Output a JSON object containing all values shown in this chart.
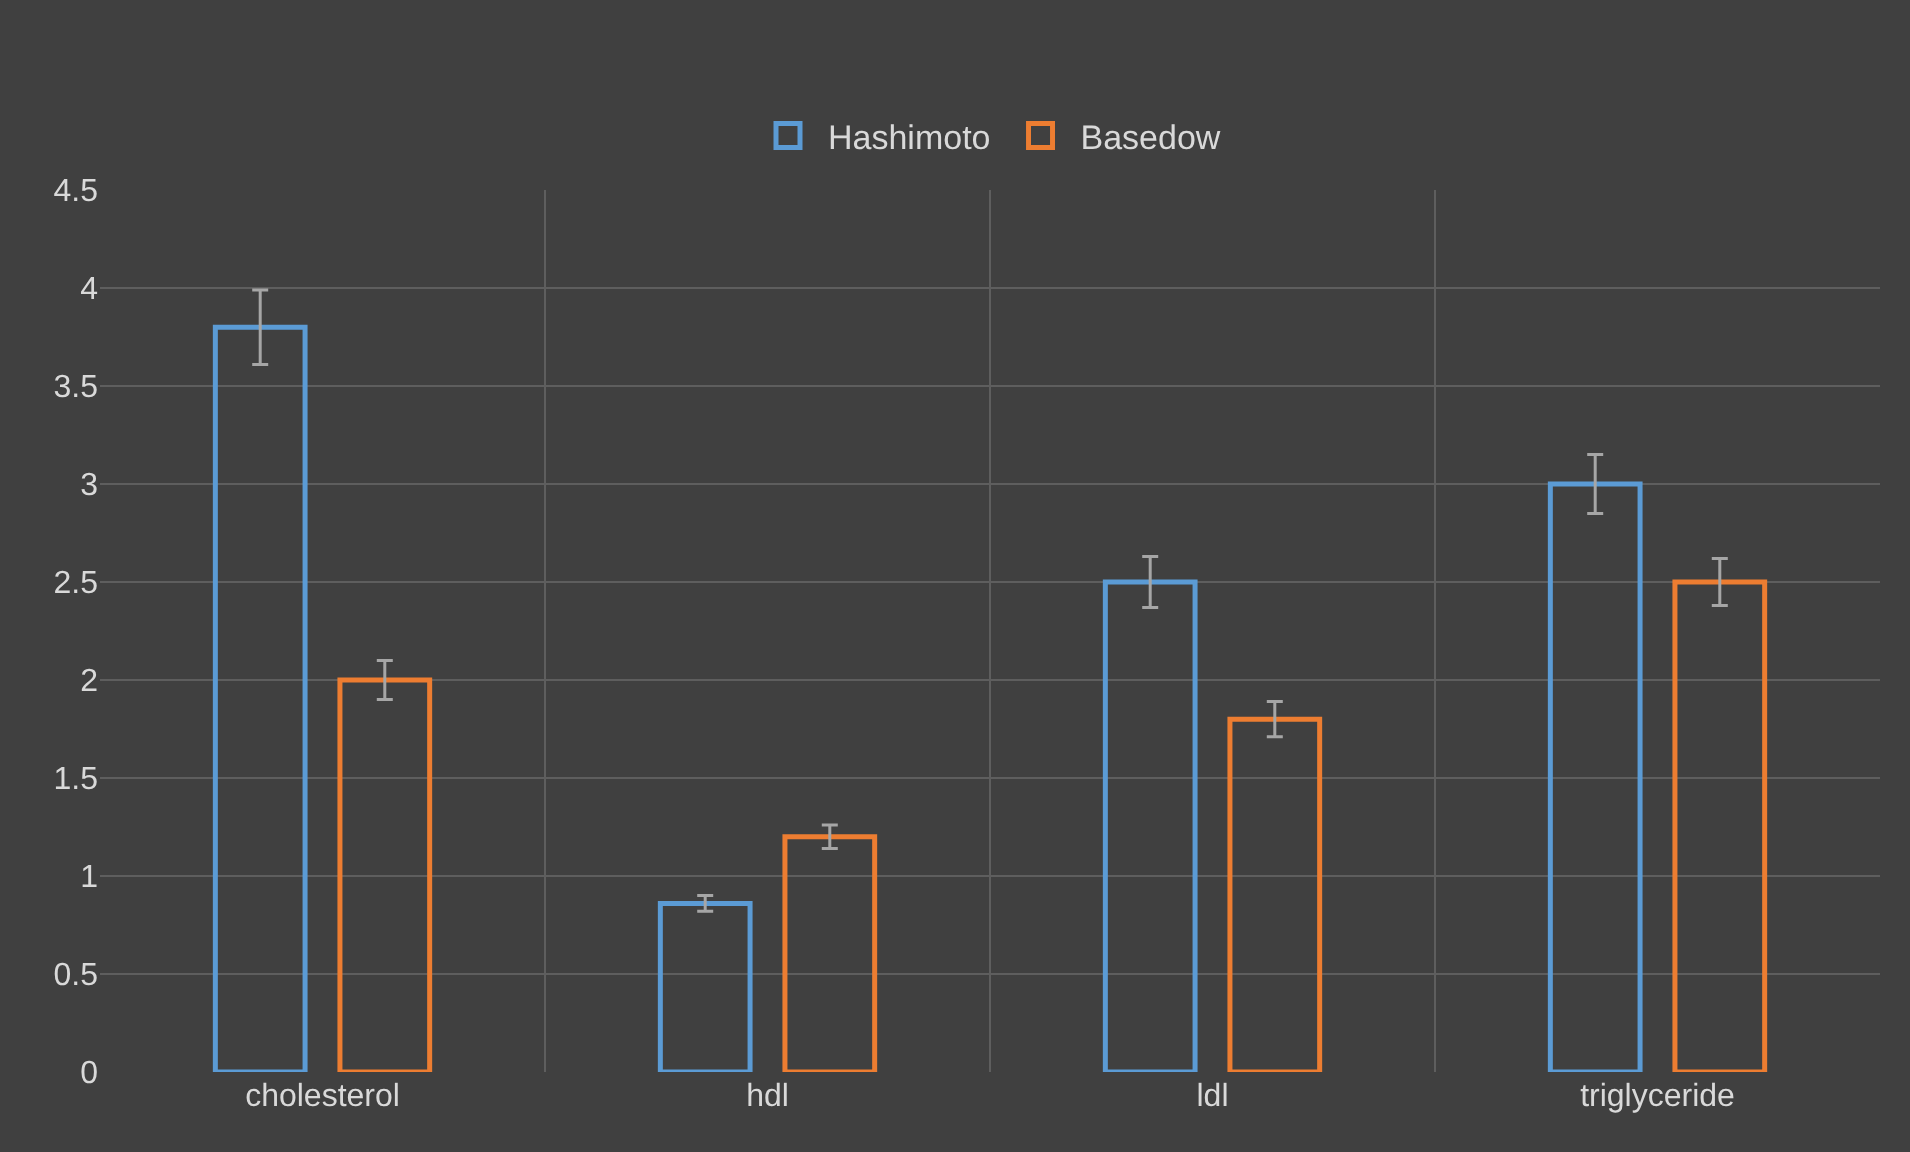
{
  "chart_data": {
    "type": "bar",
    "categories": [
      "cholesterol",
      "hdl",
      "ldl",
      "triglyceride"
    ],
    "series": [
      {
        "name": "Hashimoto",
        "color": "#5b9bd5",
        "values": [
          3.8,
          0.86,
          2.5,
          3.0
        ],
        "errors": [
          0.19,
          0.04,
          0.13,
          0.15
        ]
      },
      {
        "name": "Basedow",
        "color": "#ed7d31",
        "values": [
          2.0,
          1.2,
          1.8,
          2.5
        ],
        "errors": [
          0.1,
          0.06,
          0.09,
          0.12
        ]
      }
    ],
    "ylim": [
      0,
      4.5
    ],
    "yticks": [
      0,
      0.5,
      1,
      1.5,
      2,
      2.5,
      3,
      3.5,
      4,
      4.5
    ],
    "grid": true,
    "legend": "top"
  }
}
